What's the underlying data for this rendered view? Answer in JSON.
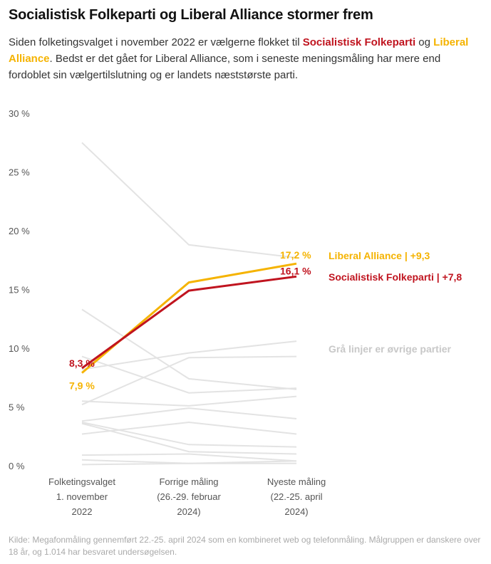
{
  "header": {
    "title": "Socialistisk Folkeparti og Liberal Alliance stormer frem",
    "subtitle_parts": [
      "Siden folketingsvalget i november 2022 er vælgerne flokket til ",
      "Socialistisk Folkeparti",
      " og ",
      "Liberal Alliance",
      ". Bedst er det gået for Liberal Alliance, som i seneste meningsmåling har mere end fordoblet sin vælgertilslutning og er landets næststørste parti."
    ]
  },
  "colors": {
    "sf": "#c0141f",
    "la": "#f5b300",
    "others": "#e3e3e3",
    "others_label": "#c8c8c8"
  },
  "chart_data": {
    "type": "line",
    "title": "Socialistisk Folkeparti og Liberal Alliance stormer frem",
    "xlabel": "",
    "ylabel": "",
    "categories": [
      [
        "Folketingsvalget",
        "1. november",
        "2022"
      ],
      [
        "Forrige måling",
        "(26.-29. februar",
        "2024)"
      ],
      [
        "Nyeste måling",
        "(22.-25. april",
        "2024)"
      ]
    ],
    "ylim": [
      0,
      30
    ],
    "yticks": [
      0,
      5,
      10,
      15,
      20,
      25,
      30
    ],
    "ytick_labels": [
      "0 %",
      "5 %",
      "10 %",
      "15 %",
      "20 %",
      "25 %",
      "30 %"
    ],
    "grid": false,
    "highlighted_series": [
      {
        "name": "Liberal Alliance",
        "key": "la",
        "values": [
          7.9,
          15.6,
          17.2
        ],
        "start_label": "7,9 %",
        "end_label": "17,2 %",
        "legend": "Liberal Alliance | +9,3"
      },
      {
        "name": "Socialistisk Folkeparti",
        "key": "sf",
        "values": [
          8.3,
          14.9,
          16.1
        ],
        "start_label": "8,3 %",
        "end_label": "16,1 %",
        "legend": "Socialistisk Folkeparti | +7,8"
      }
    ],
    "other_series": [
      [
        27.5,
        18.8,
        17.7
      ],
      [
        13.3,
        7.4,
        6.5
      ],
      [
        9.3,
        6.2,
        6.6
      ],
      [
        8.2,
        9.6,
        10.6
      ],
      [
        5.2,
        9.2,
        9.3
      ],
      [
        5.5,
        5.1,
        5.9
      ],
      [
        3.8,
        4.9,
        4.0
      ],
      [
        3.7,
        1.8,
        1.6
      ],
      [
        3.6,
        1.2,
        1.0
      ],
      [
        2.7,
        3.7,
        2.7
      ],
      [
        0.9,
        1.0,
        0.4
      ],
      [
        0.5,
        0.2,
        0.4
      ],
      [
        0.1,
        0.2,
        0.2
      ]
    ],
    "annotation": "Grå linjer er øvrige partier"
  },
  "footer": {
    "source": "Kilde: Megafonmåling gennemført 22.-25. april 2024 som en kombineret web og telefonmåling. Målgruppen er danskere over 18 år, og 1.014 har besvaret undersøgelsen."
  }
}
